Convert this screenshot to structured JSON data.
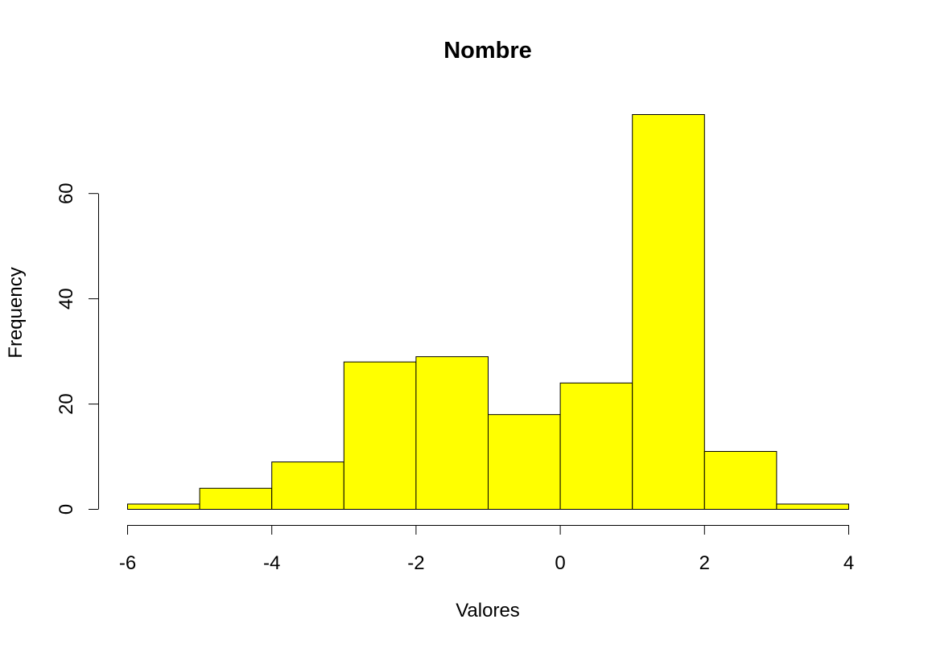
{
  "chart_data": {
    "type": "bar",
    "title": "Nombre",
    "xlabel": "Valores",
    "ylabel": "Frequency",
    "bins": [
      {
        "from": -6,
        "to": -5,
        "count": 1
      },
      {
        "from": -5,
        "to": -4,
        "count": 4
      },
      {
        "from": -4,
        "to": -3,
        "count": 9
      },
      {
        "from": -3,
        "to": -2,
        "count": 28
      },
      {
        "from": -2,
        "to": -1,
        "count": 29
      },
      {
        "from": -1,
        "to": 0,
        "count": 18
      },
      {
        "from": 0,
        "to": 1,
        "count": 24
      },
      {
        "from": 1,
        "to": 2,
        "count": 75
      },
      {
        "from": 2,
        "to": 3,
        "count": 11
      },
      {
        "from": 3,
        "to": 4,
        "count": 1
      }
    ],
    "xlim": [
      -6,
      4
    ],
    "ylim": [
      0,
      75
    ],
    "x_ticks": [
      -6,
      -4,
      -2,
      0,
      2,
      4
    ],
    "y_ticks": [
      0,
      20,
      40,
      60
    ],
    "bar_color": "#ffff00",
    "border_color": "#000000",
    "grid": false
  }
}
